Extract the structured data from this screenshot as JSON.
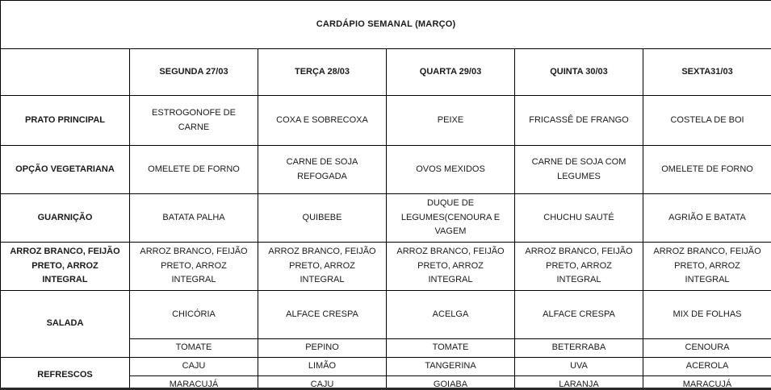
{
  "title": "CARDÁPIO SEMANAL (MARÇO)",
  "table": {
    "corner": "",
    "day_headers": [
      "SEGUNDA 27/03",
      "TERÇA 28/03",
      "QUARTA 29/03",
      "QUINTA 30/03",
      "SEXTA31/03"
    ],
    "rows": [
      {
        "label": "PRATO PRINCIPAL",
        "cells": [
          "ESTROGONOFE DE CARNE",
          "COXA E SOBRECOXA",
          "PEIXE",
          "FRICASSÊ DE FRANGO",
          "COSTELA DE BOI"
        ]
      },
      {
        "label": "OPÇÃO VEGETARIANA",
        "cells": [
          "OMELETE DE FORNO",
          "CARNE DE SOJA REFOGADA",
          "OVOS MEXIDOS",
          "CARNE DE SOJA COM LEGUMES",
          "OMELETE DE FORNO"
        ]
      },
      {
        "label": "GUARNIÇÃO",
        "cells": [
          "BATATA PALHA",
          "QUIBEBE",
          "DUQUE DE LEGUMES(CENOURA E VAGEM",
          "CHUCHU SAUTÉ",
          "AGRIÃO E BATATA"
        ]
      },
      {
        "label": "ARROZ BRANCO, FEIJÃO PRETO, ARROZ INTEGRAL",
        "cells": [
          "ARROZ BRANCO, FEIJÃO PRETO, ARROZ INTEGRAL",
          "ARROZ BRANCO, FEIJÃO PRETO, ARROZ INTEGRAL",
          "ARROZ BRANCO, FEIJÃO PRETO, ARROZ INTEGRAL",
          "ARROZ BRANCO, FEIJÃO PRETO, ARROZ INTEGRAL",
          "ARROZ BRANCO, FEIJÃO PRETO, ARROZ INTEGRAL"
        ]
      },
      {
        "label": "SALADA",
        "cells": [
          "CHICÓRIA",
          "ALFACE CRESPA",
          "ACELGA",
          "ALFACE CRESPA",
          "MIX DE FOLHAS"
        ],
        "cells2": [
          "TOMATE",
          "PEPINO",
          "TOMATE",
          "BETERRABA",
          "CENOURA"
        ]
      },
      {
        "label": "REFRESCOS",
        "cells": [
          "CAJU",
          "LIMÃO",
          "TANGERINA",
          "UVA",
          "ACEROLA"
        ],
        "cells2": [
          "MARACUJÁ",
          "CAJU",
          "GOIABA",
          "LARANJA",
          "MARACUJÁ"
        ]
      }
    ]
  },
  "colors": {
    "border": "#000000",
    "text": "#1a1a1a",
    "background": "#ffffff"
  }
}
